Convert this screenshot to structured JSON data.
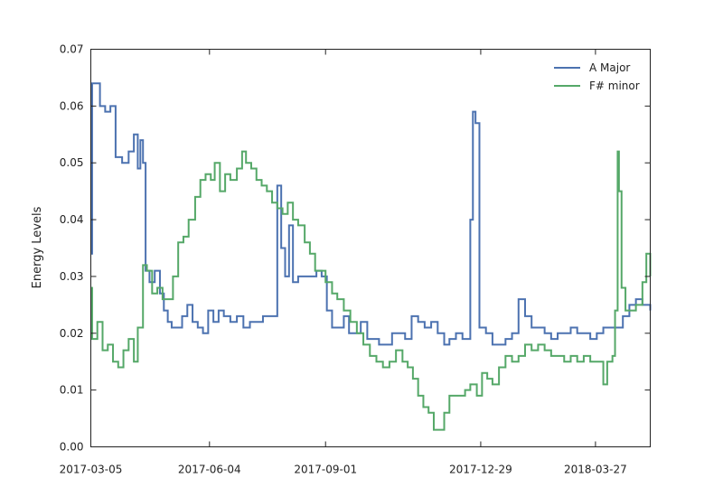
{
  "chart_data": {
    "type": "line",
    "title": "",
    "xlabel": "",
    "ylabel": "Energy Levels",
    "xlim": [
      "2017-03-05",
      "2018-05-08"
    ],
    "ylim": [
      0,
      0.07
    ],
    "x_ticks": [
      "2017-03-05",
      "2017-06-04",
      "2017-09-01",
      "2017-12-29",
      "2018-03-27"
    ],
    "y_ticks": [
      "0.00",
      "0.01",
      "0.02",
      "0.03",
      "0.04",
      "0.05",
      "0.06",
      "0.07"
    ],
    "grid": false,
    "legend_position": "top-right",
    "series": [
      {
        "name": "A Major",
        "color": "#4c72b0",
        "points": [
          [
            "2017-03-05",
            0.034
          ],
          [
            "2017-03-06",
            0.064
          ],
          [
            "2017-03-10",
            0.064
          ],
          [
            "2017-03-12",
            0.06
          ],
          [
            "2017-03-16",
            0.059
          ],
          [
            "2017-03-20",
            0.06
          ],
          [
            "2017-03-24",
            0.051
          ],
          [
            "2017-03-29",
            0.05
          ],
          [
            "2017-04-03",
            0.052
          ],
          [
            "2017-04-07",
            0.055
          ],
          [
            "2017-04-10",
            0.049
          ],
          [
            "2017-04-12",
            0.054
          ],
          [
            "2017-04-14",
            0.05
          ],
          [
            "2017-04-16",
            0.031
          ],
          [
            "2017-04-19",
            0.029
          ],
          [
            "2017-04-23",
            0.031
          ],
          [
            "2017-04-27",
            0.027
          ],
          [
            "2017-04-30",
            0.024
          ],
          [
            "2017-05-03",
            0.022
          ],
          [
            "2017-05-06",
            0.021
          ],
          [
            "2017-05-10",
            0.021
          ],
          [
            "2017-05-14",
            0.023
          ],
          [
            "2017-05-18",
            0.025
          ],
          [
            "2017-05-22",
            0.022
          ],
          [
            "2017-05-26",
            0.021
          ],
          [
            "2017-05-30",
            0.02
          ],
          [
            "2017-06-03",
            0.024
          ],
          [
            "2017-06-07",
            0.022
          ],
          [
            "2017-06-11",
            0.024
          ],
          [
            "2017-06-15",
            0.023
          ],
          [
            "2017-06-20",
            0.022
          ],
          [
            "2017-06-25",
            0.023
          ],
          [
            "2017-06-30",
            0.021
          ],
          [
            "2017-07-05",
            0.022
          ],
          [
            "2017-07-10",
            0.022
          ],
          [
            "2017-07-15",
            0.023
          ],
          [
            "2017-07-20",
            0.023
          ],
          [
            "2017-07-26",
            0.046
          ],
          [
            "2017-07-29",
            0.035
          ],
          [
            "2017-08-01",
            0.03
          ],
          [
            "2017-08-04",
            0.039
          ],
          [
            "2017-08-07",
            0.029
          ],
          [
            "2017-08-11",
            0.03
          ],
          [
            "2017-08-16",
            0.03
          ],
          [
            "2017-08-20",
            0.03
          ],
          [
            "2017-08-25",
            0.031
          ],
          [
            "2017-08-29",
            0.03
          ],
          [
            "2017-09-02",
            0.024
          ],
          [
            "2017-09-06",
            0.021
          ],
          [
            "2017-09-11",
            0.021
          ],
          [
            "2017-09-15",
            0.023
          ],
          [
            "2017-09-19",
            0.02
          ],
          [
            "2017-09-24",
            0.02
          ],
          [
            "2017-09-28",
            0.022
          ],
          [
            "2017-10-03",
            0.019
          ],
          [
            "2017-10-07",
            0.019
          ],
          [
            "2017-10-12",
            0.018
          ],
          [
            "2017-10-17",
            0.018
          ],
          [
            "2017-10-22",
            0.02
          ],
          [
            "2017-10-27",
            0.02
          ],
          [
            "2017-11-01",
            0.019
          ],
          [
            "2017-11-06",
            0.023
          ],
          [
            "2017-11-11",
            0.022
          ],
          [
            "2017-11-16",
            0.021
          ],
          [
            "2017-11-21",
            0.022
          ],
          [
            "2017-11-26",
            0.02
          ],
          [
            "2017-12-01",
            0.018
          ],
          [
            "2017-12-05",
            0.019
          ],
          [
            "2017-12-10",
            0.02
          ],
          [
            "2017-12-15",
            0.019
          ],
          [
            "2017-12-19",
            0.019
          ],
          [
            "2017-12-21",
            0.04
          ],
          [
            "2017-12-23",
            0.059
          ],
          [
            "2017-12-25",
            0.057
          ],
          [
            "2017-12-28",
            0.021
          ],
          [
            "2018-01-02",
            0.02
          ],
          [
            "2018-01-07",
            0.018
          ],
          [
            "2018-01-12",
            0.018
          ],
          [
            "2018-01-17",
            0.019
          ],
          [
            "2018-01-22",
            0.02
          ],
          [
            "2018-01-27",
            0.026
          ],
          [
            "2018-02-01",
            0.023
          ],
          [
            "2018-02-06",
            0.021
          ],
          [
            "2018-02-11",
            0.021
          ],
          [
            "2018-02-16",
            0.02
          ],
          [
            "2018-02-21",
            0.019
          ],
          [
            "2018-02-26",
            0.02
          ],
          [
            "2018-03-03",
            0.02
          ],
          [
            "2018-03-08",
            0.021
          ],
          [
            "2018-03-13",
            0.02
          ],
          [
            "2018-03-18",
            0.02
          ],
          [
            "2018-03-23",
            0.019
          ],
          [
            "2018-03-28",
            0.02
          ],
          [
            "2018-04-02",
            0.021
          ],
          [
            "2018-04-07",
            0.021
          ],
          [
            "2018-04-12",
            0.021
          ],
          [
            "2018-04-17",
            0.023
          ],
          [
            "2018-04-22",
            0.025
          ],
          [
            "2018-04-27",
            0.026
          ],
          [
            "2018-05-02",
            0.025
          ],
          [
            "2018-05-08",
            0.024
          ]
        ]
      },
      {
        "name": "F# minor",
        "color": "#55a868",
        "points": [
          [
            "2017-03-05",
            0.028
          ],
          [
            "2017-03-06",
            0.019
          ],
          [
            "2017-03-10",
            0.022
          ],
          [
            "2017-03-14",
            0.017
          ],
          [
            "2017-03-18",
            0.018
          ],
          [
            "2017-03-22",
            0.015
          ],
          [
            "2017-03-26",
            0.014
          ],
          [
            "2017-03-30",
            0.017
          ],
          [
            "2017-04-03",
            0.019
          ],
          [
            "2017-04-07",
            0.015
          ],
          [
            "2017-04-10",
            0.021
          ],
          [
            "2017-04-14",
            0.032
          ],
          [
            "2017-04-17",
            0.031
          ],
          [
            "2017-04-21",
            0.027
          ],
          [
            "2017-04-25",
            0.028
          ],
          [
            "2017-04-29",
            0.026
          ],
          [
            "2017-05-03",
            0.026
          ],
          [
            "2017-05-07",
            0.03
          ],
          [
            "2017-05-11",
            0.036
          ],
          [
            "2017-05-15",
            0.037
          ],
          [
            "2017-05-19",
            0.04
          ],
          [
            "2017-05-24",
            0.044
          ],
          [
            "2017-05-28",
            0.047
          ],
          [
            "2017-06-01",
            0.048
          ],
          [
            "2017-06-05",
            0.047
          ],
          [
            "2017-06-08",
            0.05
          ],
          [
            "2017-06-12",
            0.045
          ],
          [
            "2017-06-16",
            0.048
          ],
          [
            "2017-06-20",
            0.047
          ],
          [
            "2017-06-25",
            0.049
          ],
          [
            "2017-06-29",
            0.052
          ],
          [
            "2017-07-02",
            0.05
          ],
          [
            "2017-07-06",
            0.049
          ],
          [
            "2017-07-10",
            0.047
          ],
          [
            "2017-07-14",
            0.046
          ],
          [
            "2017-07-18",
            0.045
          ],
          [
            "2017-07-22",
            0.043
          ],
          [
            "2017-07-26",
            0.042
          ],
          [
            "2017-07-30",
            0.041
          ],
          [
            "2017-08-03",
            0.043
          ],
          [
            "2017-08-07",
            0.04
          ],
          [
            "2017-08-11",
            0.039
          ],
          [
            "2017-08-16",
            0.036
          ],
          [
            "2017-08-20",
            0.034
          ],
          [
            "2017-08-24",
            0.031
          ],
          [
            "2017-08-28",
            0.031
          ],
          [
            "2017-09-01",
            0.029
          ],
          [
            "2017-09-06",
            0.027
          ],
          [
            "2017-09-10",
            0.026
          ],
          [
            "2017-09-15",
            0.024
          ],
          [
            "2017-09-20",
            0.022
          ],
          [
            "2017-09-25",
            0.02
          ],
          [
            "2017-09-30",
            0.018
          ],
          [
            "2017-10-05",
            0.016
          ],
          [
            "2017-10-10",
            0.015
          ],
          [
            "2017-10-15",
            0.014
          ],
          [
            "2017-10-20",
            0.015
          ],
          [
            "2017-10-25",
            0.017
          ],
          [
            "2017-10-30",
            0.015
          ],
          [
            "2017-11-03",
            0.014
          ],
          [
            "2017-11-07",
            0.012
          ],
          [
            "2017-11-11",
            0.009
          ],
          [
            "2017-11-15",
            0.007
          ],
          [
            "2017-11-19",
            0.006
          ],
          [
            "2017-11-23",
            0.003
          ],
          [
            "2017-11-27",
            0.003
          ],
          [
            "2017-12-01",
            0.006
          ],
          [
            "2017-12-05",
            0.009
          ],
          [
            "2017-12-09",
            0.009
          ],
          [
            "2017-12-13",
            0.009
          ],
          [
            "2017-12-17",
            0.01
          ],
          [
            "2017-12-21",
            0.011
          ],
          [
            "2017-12-26",
            0.009
          ],
          [
            "2017-12-30",
            0.013
          ],
          [
            "2018-01-03",
            0.012
          ],
          [
            "2018-01-07",
            0.011
          ],
          [
            "2018-01-12",
            0.014
          ],
          [
            "2018-01-17",
            0.016
          ],
          [
            "2018-01-22",
            0.015
          ],
          [
            "2018-01-27",
            0.016
          ],
          [
            "2018-02-01",
            0.018
          ],
          [
            "2018-02-06",
            0.017
          ],
          [
            "2018-02-11",
            0.018
          ],
          [
            "2018-02-16",
            0.017
          ],
          [
            "2018-02-21",
            0.016
          ],
          [
            "2018-02-26",
            0.016
          ],
          [
            "2018-03-03",
            0.015
          ],
          [
            "2018-03-08",
            0.016
          ],
          [
            "2018-03-13",
            0.015
          ],
          [
            "2018-03-18",
            0.016
          ],
          [
            "2018-03-23",
            0.015
          ],
          [
            "2018-03-28",
            0.015
          ],
          [
            "2018-04-02",
            0.011
          ],
          [
            "2018-04-05",
            0.015
          ],
          [
            "2018-04-09",
            0.016
          ],
          [
            "2018-04-11",
            0.024
          ],
          [
            "2018-04-13",
            0.052
          ],
          [
            "2018-04-14",
            0.045
          ],
          [
            "2018-04-16",
            0.028
          ],
          [
            "2018-04-19",
            0.024
          ],
          [
            "2018-04-23",
            0.024
          ],
          [
            "2018-04-27",
            0.025
          ],
          [
            "2018-05-02",
            0.029
          ],
          [
            "2018-05-05",
            0.034
          ],
          [
            "2018-05-08",
            0.03
          ]
        ]
      }
    ]
  }
}
